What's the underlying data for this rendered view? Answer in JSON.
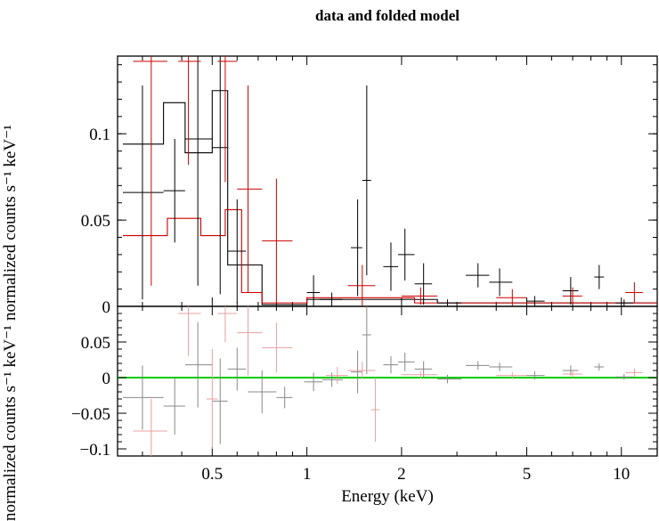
{
  "title": "data and folded model",
  "colors": {
    "black": "#000000",
    "red": "#cc0000",
    "green": "#00cc00",
    "res_black": "#888888",
    "res_red": "#e8a0a0"
  },
  "chart_data": [
    {
      "panel": "top",
      "type": "scatter",
      "title": "data and folded model",
      "ylabel": "normalized counts s⁻¹ keV⁻¹",
      "xscale": "log",
      "xlim": [
        0.25,
        13
      ],
      "ylim": [
        0,
        0.145
      ],
      "yticks": [
        0,
        0.05,
        0.1
      ],
      "ytick_labels": [
        "0",
        "0.05",
        "0.1"
      ],
      "series": [
        {
          "color": "black",
          "points": [
            {
              "x": 0.3,
              "y": 0.066,
              "xlo": 0.26,
              "xhi": 0.35,
              "err": 0.062
            },
            {
              "x": 0.38,
              "y": 0.067,
              "xlo": 0.35,
              "xhi": 0.41,
              "err": 0.03
            },
            {
              "x": 0.45,
              "y": 0.097,
              "xlo": 0.41,
              "xhi": 0.5,
              "err": 0.085
            },
            {
              "x": 0.53,
              "y": 0.092,
              "xlo": 0.5,
              "xhi": 0.56,
              "err": 0.085
            },
            {
              "x": 0.6,
              "y": 0.032,
              "xlo": 0.56,
              "xhi": 0.64,
              "err": 0.03
            },
            {
              "x": 0.9,
              "y": 0.001,
              "xlo": 0.72,
              "xhi": 1.0,
              "err": 0.0
            },
            {
              "x": 1.05,
              "y": 0.008,
              "xlo": 1.0,
              "xhi": 1.1,
              "err": 0.01
            },
            {
              "x": 1.2,
              "y": 0.004,
              "xlo": 1.1,
              "xhi": 1.3,
              "err": 0.004
            },
            {
              "x": 1.45,
              "y": 0.034,
              "xlo": 1.38,
              "xhi": 1.5,
              "err": 0.028
            },
            {
              "x": 1.55,
              "y": 0.073,
              "xlo": 1.5,
              "xhi": 1.6,
              "err": 0.055
            },
            {
              "x": 1.85,
              "y": 0.023,
              "xlo": 1.75,
              "xhi": 1.95,
              "err": 0.014
            },
            {
              "x": 2.05,
              "y": 0.03,
              "xlo": 1.95,
              "xhi": 2.2,
              "err": 0.015
            },
            {
              "x": 2.35,
              "y": 0.013,
              "xlo": 2.2,
              "xhi": 2.5,
              "err": 0.012
            },
            {
              "x": 2.8,
              "y": 0.002,
              "xlo": 2.6,
              "xhi": 3.1,
              "err": 0.002
            },
            {
              "x": 3.5,
              "y": 0.018,
              "xlo": 3.2,
              "xhi": 3.8,
              "err": 0.007
            },
            {
              "x": 4.1,
              "y": 0.014,
              "xlo": 3.8,
              "xhi": 4.5,
              "err": 0.008
            },
            {
              "x": 5.3,
              "y": 0.003,
              "xlo": 5.0,
              "xhi": 5.7,
              "err": 0.003
            },
            {
              "x": 6.9,
              "y": 0.009,
              "xlo": 6.5,
              "xhi": 7.3,
              "err": 0.008
            },
            {
              "x": 8.5,
              "y": 0.017,
              "xlo": 8.2,
              "xhi": 8.8,
              "err": 0.007
            },
            {
              "x": 10.2,
              "y": 0.002,
              "xlo": 9.6,
              "xhi": 10.9,
              "err": 0.002
            }
          ],
          "model_steps": [
            {
              "x0": 0.26,
              "x1": 0.35,
              "y": 0.094
            },
            {
              "x0": 0.35,
              "x1": 0.41,
              "y": 0.118
            },
            {
              "x0": 0.41,
              "x1": 0.5,
              "y": 0.089
            },
            {
              "x0": 0.5,
              "x1": 0.56,
              "y": 0.125
            },
            {
              "x0": 0.56,
              "x1": 0.72,
              "y": 0.024
            },
            {
              "x0": 0.72,
              "x1": 1.0,
              "y": 0.001
            },
            {
              "x0": 1.0,
              "x1": 2.6,
              "y": 0.004
            },
            {
              "x0": 2.6,
              "x1": 13,
              "y": 0.002
            }
          ]
        },
        {
          "color": "red",
          "points": [
            {
              "x": 0.32,
              "y": 0.142,
              "xlo": 0.28,
              "xhi": 0.36,
              "err": 0.13
            },
            {
              "x": 0.42,
              "y": 0.142,
              "xlo": 0.39,
              "xhi": 0.46,
              "err": 0.06
            },
            {
              "x": 0.55,
              "y": 0.142,
              "xlo": 0.52,
              "xhi": 0.6,
              "err": 0.07
            },
            {
              "x": 0.65,
              "y": 0.068,
              "xlo": 0.6,
              "xhi": 0.72,
              "err": 0.06
            },
            {
              "x": 0.8,
              "y": 0.038,
              "xlo": 0.72,
              "xhi": 0.9,
              "err": 0.036
            },
            {
              "x": 1.5,
              "y": 0.012,
              "xlo": 1.35,
              "xhi": 1.65,
              "err": 0.012
            },
            {
              "x": 2.3,
              "y": 0.006,
              "xlo": 2.0,
              "xhi": 2.6,
              "err": 0.005
            },
            {
              "x": 4.5,
              "y": 0.005,
              "xlo": 4.0,
              "xhi": 5.0,
              "err": 0.005
            },
            {
              "x": 7.0,
              "y": 0.006,
              "xlo": 6.5,
              "xhi": 7.5,
              "err": 0.005
            },
            {
              "x": 11.0,
              "y": 0.008,
              "xlo": 10.3,
              "xhi": 11.7,
              "err": 0.006
            }
          ],
          "model_steps": [
            {
              "x0": 0.26,
              "x1": 0.36,
              "y": 0.041
            },
            {
              "x0": 0.36,
              "x1": 0.46,
              "y": 0.051
            },
            {
              "x0": 0.46,
              "x1": 0.55,
              "y": 0.041
            },
            {
              "x0": 0.55,
              "x1": 0.62,
              "y": 0.056
            },
            {
              "x0": 0.62,
              "x1": 0.72,
              "y": 0.008
            },
            {
              "x0": 0.72,
              "x1": 1.0,
              "y": 0.002
            },
            {
              "x0": 1.0,
              "x1": 2.2,
              "y": 0.005
            },
            {
              "x0": 2.2,
              "x1": 13,
              "y": 0.002
            }
          ]
        }
      ]
    },
    {
      "panel": "bottom",
      "type": "scatter",
      "xlabel": "Energy (keV)",
      "ylabel": "normalized counts s⁻¹ keV⁻¹",
      "xscale": "log",
      "xlim": [
        0.25,
        13
      ],
      "ylim": [
        -0.11,
        0.1
      ],
      "xticks": [
        0.5,
        1,
        2,
        5,
        10
      ],
      "xtick_labels": [
        "0.5",
        "1",
        "2",
        "5",
        "10"
      ],
      "yticks": [
        -0.1,
        -0.05,
        0,
        0.05
      ],
      "ytick_labels": [
        "−0.1",
        "−0.05",
        "0",
        "0.05"
      ],
      "zero_line_color": "green",
      "series": [
        {
          "color": "res_black",
          "points": [
            {
              "x": 0.3,
              "y": -0.028,
              "xlo": 0.26,
              "xhi": 0.35,
              "err": 0.045
            },
            {
              "x": 0.38,
              "y": -0.04,
              "xlo": 0.35,
              "xhi": 0.41,
              "err": 0.04
            },
            {
              "x": 0.45,
              "y": 0.018,
              "xlo": 0.41,
              "xhi": 0.5,
              "err": 0.06
            },
            {
              "x": 0.53,
              "y": -0.033,
              "xlo": 0.5,
              "xhi": 0.56,
              "err": 0.06
            },
            {
              "x": 0.6,
              "y": 0.012,
              "xlo": 0.56,
              "xhi": 0.64,
              "err": 0.03
            },
            {
              "x": 0.72,
              "y": -0.02,
              "xlo": 0.65,
              "xhi": 0.8,
              "err": 0.03
            },
            {
              "x": 0.85,
              "y": -0.028,
              "xlo": 0.8,
              "xhi": 0.9,
              "err": 0.015
            },
            {
              "x": 1.05,
              "y": -0.006,
              "xlo": 0.98,
              "xhi": 1.12,
              "err": 0.013
            },
            {
              "x": 1.2,
              "y": -0.003,
              "xlo": 1.12,
              "xhi": 1.3,
              "err": 0.01
            },
            {
              "x": 1.45,
              "y": 0.008,
              "xlo": 1.38,
              "xhi": 1.5,
              "err": 0.03
            },
            {
              "x": 1.55,
              "y": 0.06,
              "xlo": 1.5,
              "xhi": 1.6,
              "err": 0.055
            },
            {
              "x": 1.85,
              "y": 0.018,
              "xlo": 1.75,
              "xhi": 1.95,
              "err": 0.012
            },
            {
              "x": 2.05,
              "y": 0.022,
              "xlo": 1.95,
              "xhi": 2.2,
              "err": 0.013
            },
            {
              "x": 2.35,
              "y": 0.012,
              "xlo": 2.2,
              "xhi": 2.5,
              "err": 0.011
            },
            {
              "x": 2.8,
              "y": -0.002,
              "xlo": 2.6,
              "xhi": 3.1,
              "err": 0.006
            },
            {
              "x": 3.5,
              "y": 0.017,
              "xlo": 3.2,
              "xhi": 3.8,
              "err": 0.006
            },
            {
              "x": 4.1,
              "y": 0.015,
              "xlo": 3.8,
              "xhi": 4.5,
              "err": 0.006
            },
            {
              "x": 5.3,
              "y": 0.003,
              "xlo": 5.0,
              "xhi": 5.7,
              "err": 0.006
            },
            {
              "x": 6.9,
              "y": 0.01,
              "xlo": 6.5,
              "xhi": 7.3,
              "err": 0.007
            },
            {
              "x": 8.5,
              "y": 0.015,
              "xlo": 8.2,
              "xhi": 8.8,
              "err": 0.005
            },
            {
              "x": 10.2,
              "y": 0.001,
              "xlo": 9.6,
              "xhi": 10.9,
              "err": 0.004
            }
          ]
        },
        {
          "color": "res_red",
          "points": [
            {
              "x": 0.32,
              "y": -0.075,
              "xlo": 0.28,
              "xhi": 0.36,
              "err": 0.045
            },
            {
              "x": 0.42,
              "y": 0.09,
              "xlo": 0.39,
              "xhi": 0.46,
              "err": 0.06
            },
            {
              "x": 0.5,
              "y": -0.03,
              "xlo": 0.48,
              "xhi": 0.52,
              "err": 0.07
            },
            {
              "x": 0.55,
              "y": 0.09,
              "xlo": 0.52,
              "xhi": 0.6,
              "err": 0.04
            },
            {
              "x": 0.65,
              "y": 0.063,
              "xlo": 0.6,
              "xhi": 0.72,
              "err": 0.06
            },
            {
              "x": 0.8,
              "y": 0.042,
              "xlo": 0.72,
              "xhi": 0.9,
              "err": 0.035
            },
            {
              "x": 1.25,
              "y": 0.003,
              "xlo": 1.15,
              "xhi": 1.35,
              "err": 0.012
            },
            {
              "x": 1.5,
              "y": 0.01,
              "xlo": 1.35,
              "xhi": 1.65,
              "err": 0.012
            },
            {
              "x": 1.65,
              "y": -0.045,
              "xlo": 1.6,
              "xhi": 1.7,
              "err": 0.045
            },
            {
              "x": 2.3,
              "y": 0.004,
              "xlo": 2.0,
              "xhi": 2.6,
              "err": 0.005
            },
            {
              "x": 4.5,
              "y": 0.003,
              "xlo": 4.0,
              "xhi": 5.0,
              "err": 0.005
            },
            {
              "x": 7.0,
              "y": 0.005,
              "xlo": 6.5,
              "xhi": 7.5,
              "err": 0.005
            },
            {
              "x": 11.0,
              "y": 0.007,
              "xlo": 10.3,
              "xhi": 11.7,
              "err": 0.006
            }
          ]
        }
      ]
    }
  ]
}
